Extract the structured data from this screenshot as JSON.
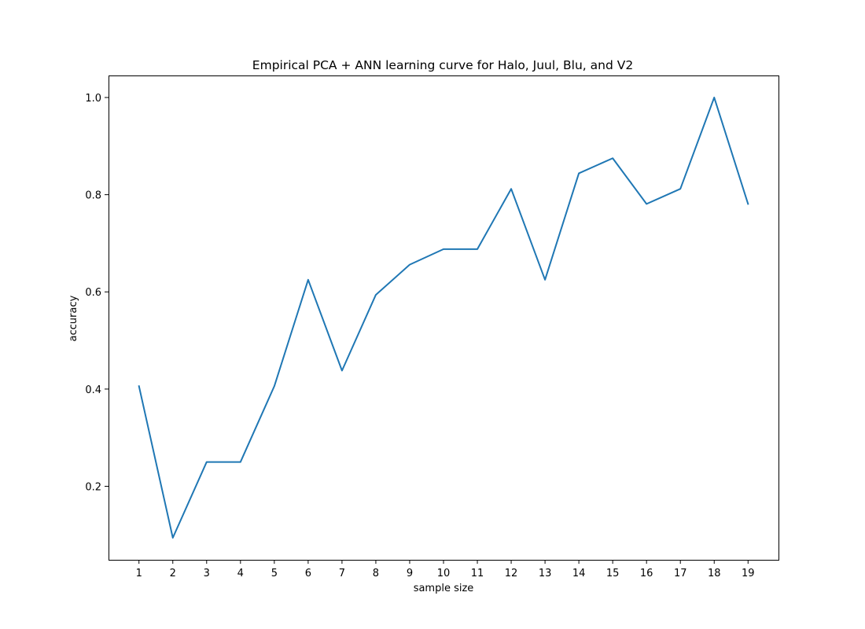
{
  "chart_data": {
    "type": "line",
    "title": "Empirical PCA + ANN learning curve for Halo, Juul, Blu, and V2",
    "xlabel": "sample size",
    "ylabel": "accuracy",
    "x": [
      1,
      2,
      3,
      4,
      5,
      6,
      7,
      8,
      9,
      10,
      11,
      12,
      13,
      14,
      15,
      16,
      17,
      18,
      19
    ],
    "series": [
      {
        "values": [
          0.406,
          0.094,
          0.25,
          0.25,
          0.406,
          0.625,
          0.438,
          0.594,
          0.656,
          0.688,
          0.688,
          0.812,
          0.625,
          0.844,
          0.875,
          0.781,
          0.812,
          1.0,
          0.781
        ],
        "color": "#1f77b4"
      }
    ],
    "xticks": [
      "1",
      "2",
      "3",
      "4",
      "5",
      "6",
      "7",
      "8",
      "9",
      "10",
      "11",
      "12",
      "13",
      "14",
      "15",
      "16",
      "17",
      "18",
      "19"
    ],
    "yticks": [
      "0.2",
      "0.4",
      "0.6",
      "0.8",
      "1.0"
    ],
    "ytick_values": [
      0.2,
      0.4,
      0.6,
      0.8,
      1.0
    ],
    "xlim": [
      0.1,
      19.9
    ],
    "ylim": [
      0.0487,
      1.0453
    ],
    "grid": false,
    "legend": "none"
  }
}
